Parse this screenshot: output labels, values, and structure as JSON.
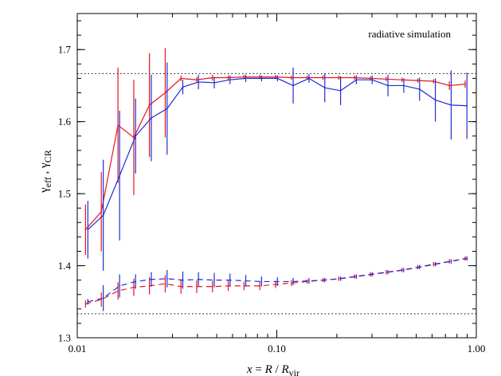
{
  "chart_data": {
    "type": "line",
    "xlabel": {
      "x": "x",
      "eq": " = ",
      "R": "R",
      "slash": " / ",
      "R2": "R",
      "sub": "vir"
    },
    "ylabel": {
      "g1": "γ",
      "s1": "eff",
      "comma": " , ",
      "g2": "γ",
      "s2": "CR"
    },
    "annotation": "radiative simulation",
    "xscale": "log",
    "xlim": [
      0.01,
      1.0
    ],
    "ylim": [
      1.3,
      1.75
    ],
    "x_ticks": [
      {
        "value": 0.01,
        "label": "0.01"
      },
      {
        "value": 0.1,
        "label": "0.10"
      },
      {
        "value": 1.0,
        "label": "1.00"
      }
    ],
    "y_ticks": [
      {
        "value": 1.3,
        "label": "1.3"
      },
      {
        "value": 1.4,
        "label": "1.4"
      },
      {
        "value": 1.5,
        "label": "1.5"
      },
      {
        "value": 1.6,
        "label": "1.6"
      },
      {
        "value": 1.7,
        "label": "1.7"
      }
    ],
    "hlines": [
      {
        "y": 1.6667,
        "style": "dotted"
      },
      {
        "y": 1.3333,
        "style": "dotted"
      }
    ],
    "colors": {
      "red": "#e8141c",
      "blue": "#1f2bd6",
      "black": "#000000"
    },
    "series": [
      {
        "color": "red",
        "dash": false,
        "x": [
          0.011,
          0.0132,
          0.016,
          0.0192,
          0.023,
          0.0276,
          0.0331,
          0.0397,
          0.0476,
          0.0571,
          0.0685,
          0.0822,
          0.0986,
          0.1184,
          0.142,
          0.1704,
          0.2045,
          0.2454,
          0.2945,
          0.3534,
          0.424,
          0.5088,
          0.6106,
          0.7327,
          0.879
        ],
        "y": [
          1.45,
          1.475,
          1.595,
          1.578,
          1.623,
          1.64,
          1.66,
          1.658,
          1.661,
          1.661,
          1.662,
          1.662,
          1.662,
          1.661,
          1.661,
          1.661,
          1.661,
          1.661,
          1.66,
          1.659,
          1.658,
          1.657,
          1.656,
          1.65,
          1.652
        ],
        "err": [
          0.035,
          0.055,
          0.08,
          0.08,
          0.072,
          0.062,
          0.004,
          0.004,
          0.004,
          0.003,
          0.003,
          0.003,
          0.003,
          0.003,
          0.003,
          0.003,
          0.003,
          0.003,
          0.003,
          0.003,
          0.003,
          0.003,
          0.003,
          0.006,
          0.005
        ]
      },
      {
        "color": "blue",
        "dash": false,
        "x": [
          0.0113,
          0.0135,
          0.0163,
          0.0196,
          0.0235,
          0.0282,
          0.0338,
          0.0405,
          0.0486,
          0.0583,
          0.0699,
          0.0839,
          0.1007,
          0.1208,
          0.145,
          0.174,
          0.2088,
          0.2505,
          0.3006,
          0.3607,
          0.4329,
          0.5195,
          0.6234,
          0.7481,
          0.8977
        ],
        "y": [
          1.45,
          1.47,
          1.525,
          1.58,
          1.605,
          1.618,
          1.648,
          1.655,
          1.654,
          1.658,
          1.66,
          1.66,
          1.66,
          1.65,
          1.66,
          1.647,
          1.643,
          1.658,
          1.658,
          1.65,
          1.65,
          1.645,
          1.63,
          1.623,
          1.622
        ],
        "err": [
          0.04,
          0.077,
          0.09,
          0.052,
          0.06,
          0.064,
          0.01,
          0.01,
          0.008,
          0.006,
          0.005,
          0.004,
          0.004,
          0.025,
          0.006,
          0.02,
          0.02,
          0.006,
          0.006,
          0.015,
          0.01,
          0.016,
          0.03,
          0.048,
          0.046
        ]
      },
      {
        "color": "red",
        "dash": true,
        "x": [
          0.011,
          0.0132,
          0.016,
          0.0192,
          0.023,
          0.0276,
          0.0331,
          0.0397,
          0.0476,
          0.0571,
          0.0685,
          0.0822,
          0.0986,
          0.1184,
          0.142,
          0.1704,
          0.2045,
          0.2454,
          0.2945,
          0.3534,
          0.424,
          0.5088,
          0.6106,
          0.7327,
          0.879
        ],
        "y": [
          1.347,
          1.353,
          1.365,
          1.37,
          1.372,
          1.375,
          1.371,
          1.371,
          1.371,
          1.372,
          1.372,
          1.372,
          1.374,
          1.376,
          1.378,
          1.38,
          1.382,
          1.385,
          1.388,
          1.391,
          1.394,
          1.398,
          1.402,
          1.406,
          1.41
        ],
        "err": [
          0.005,
          0.01,
          0.012,
          0.012,
          0.012,
          0.012,
          0.01,
          0.009,
          0.008,
          0.007,
          0.006,
          0.006,
          0.005,
          0.004,
          0.003,
          0.003,
          0.003,
          0.003,
          0.003,
          0.003,
          0.003,
          0.003,
          0.003,
          0.003,
          0.003
        ]
      },
      {
        "color": "blue",
        "dash": true,
        "x": [
          0.0113,
          0.0135,
          0.0163,
          0.0196,
          0.0235,
          0.0282,
          0.0338,
          0.0405,
          0.0486,
          0.0583,
          0.0699,
          0.0839,
          0.1007,
          0.1208,
          0.145,
          0.174,
          0.2088,
          0.2505,
          0.3006,
          0.3607,
          0.4329,
          0.5195,
          0.6234,
          0.7481,
          0.8977
        ],
        "y": [
          1.35,
          1.355,
          1.372,
          1.378,
          1.381,
          1.382,
          1.38,
          1.381,
          1.38,
          1.38,
          1.379,
          1.378,
          1.378,
          1.378,
          1.379,
          1.38,
          1.382,
          1.385,
          1.388,
          1.391,
          1.394,
          1.398,
          1.402,
          1.406,
          1.41
        ],
        "err": [
          0.004,
          0.018,
          0.016,
          0.01,
          0.01,
          0.012,
          0.012,
          0.01,
          0.01,
          0.009,
          0.008,
          0.007,
          0.006,
          0.005,
          0.004,
          0.003,
          0.003,
          0.003,
          0.003,
          0.003,
          0.003,
          0.003,
          0.003,
          0.003,
          0.003
        ]
      }
    ]
  }
}
